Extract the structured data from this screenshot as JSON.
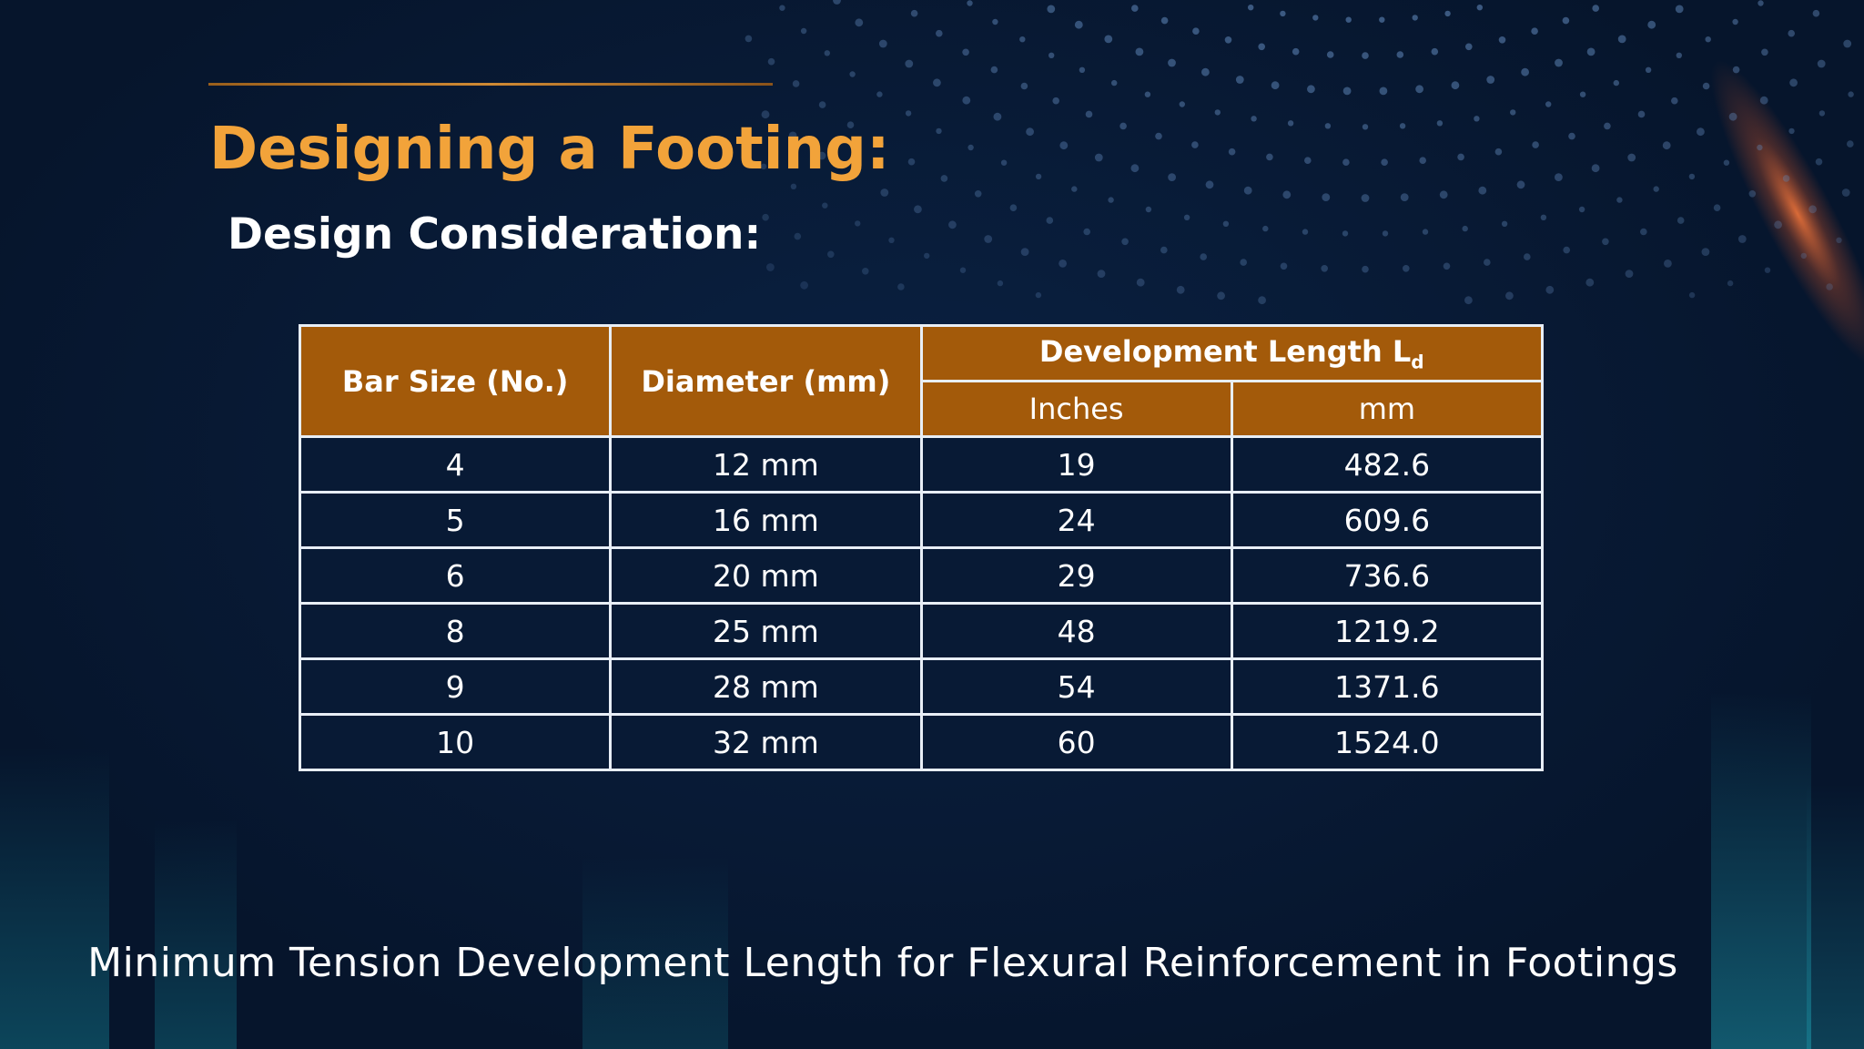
{
  "slide": {
    "title": "Designing a Footing:",
    "subtitle": "Design Consideration:",
    "caption": "Minimum Tension Development Length for Flexural Reinforcement in Footings"
  },
  "table": {
    "headers": {
      "bar_size": "Bar Size (No.)",
      "diameter": "Diameter (mm)",
      "dev_length": "Development Length L",
      "dev_length_subscript": "d",
      "inches": "Inches",
      "mm": "mm"
    },
    "rows": [
      {
        "bar": "4",
        "diameter": "12 mm",
        "inches": "19",
        "mm": "482.6"
      },
      {
        "bar": "5",
        "diameter": "16 mm",
        "inches": "24",
        "mm": "609.6"
      },
      {
        "bar": "6",
        "diameter": "20 mm",
        "inches": "29",
        "mm": "736.6"
      },
      {
        "bar": "8",
        "diameter": "25 mm",
        "inches": "48",
        "mm": "1219.2"
      },
      {
        "bar": "9",
        "diameter": "28 mm",
        "inches": "54",
        "mm": "1371.6"
      },
      {
        "bar": "10",
        "diameter": "32 mm",
        "inches": "60",
        "mm": "1524.0"
      }
    ]
  },
  "colors": {
    "title": "#f2a33a",
    "header_fill": "#a35a0a",
    "background": "#081a35",
    "grid_lines": "#e8eef6"
  }
}
